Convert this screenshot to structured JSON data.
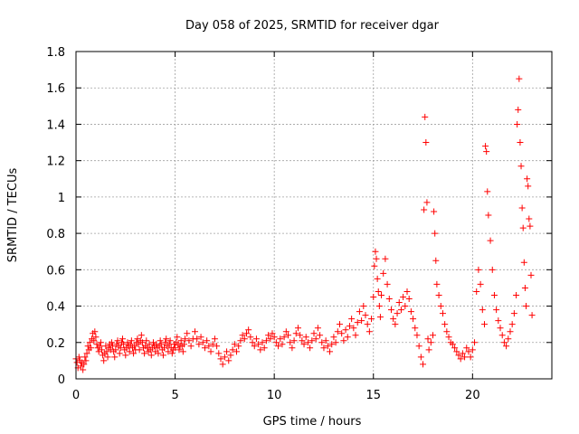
{
  "chart_data": {
    "type": "scatter",
    "title": "Day 058 of 2025, SRMTID for receiver dgar",
    "xlabel": "GPS time / hours",
    "ylabel": "SRMTID / TECUs",
    "xlim": [
      0,
      24
    ],
    "ylim": [
      0,
      1.8
    ],
    "xticks": [
      0,
      5,
      10,
      15,
      20
    ],
    "xtick_labels": [
      "0",
      "5",
      "10",
      "15",
      "20"
    ],
    "yticks": [
      0,
      0.2,
      0.4,
      0.6,
      0.8,
      1,
      1.2,
      1.4,
      1.6,
      1.8
    ],
    "ytick_labels": [
      "0",
      "0.2",
      "0.4",
      "0.6",
      "0.8",
      "1",
      "1.2",
      "1.4",
      "1.6",
      "1.8"
    ],
    "grid": true,
    "marker": "+",
    "marker_color": "#ff0000",
    "series": [
      {
        "name": "SRMTID",
        "points": [
          [
            0.0,
            0.11
          ],
          [
            0.05,
            0.09
          ],
          [
            0.1,
            0.06
          ],
          [
            0.15,
            0.12
          ],
          [
            0.2,
            0.1
          ],
          [
            0.25,
            0.07
          ],
          [
            0.3,
            0.09
          ],
          [
            0.35,
            0.05
          ],
          [
            0.4,
            0.08
          ],
          [
            0.45,
            0.12
          ],
          [
            0.5,
            0.1
          ],
          [
            0.55,
            0.14
          ],
          [
            0.6,
            0.18
          ],
          [
            0.65,
            0.16
          ],
          [
            0.7,
            0.2
          ],
          [
            0.75,
            0.17
          ],
          [
            0.8,
            0.22
          ],
          [
            0.85,
            0.25
          ],
          [
            0.9,
            0.21
          ],
          [
            0.95,
            0.26
          ],
          [
            1.0,
            0.23
          ],
          [
            1.05,
            0.19
          ],
          [
            1.1,
            0.17
          ],
          [
            1.15,
            0.15
          ],
          [
            1.2,
            0.18
          ],
          [
            1.25,
            0.2
          ],
          [
            1.3,
            0.16
          ],
          [
            1.35,
            0.13
          ],
          [
            1.4,
            0.1
          ],
          [
            1.45,
            0.14
          ],
          [
            1.5,
            0.18
          ],
          [
            1.55,
            0.15
          ],
          [
            1.6,
            0.12
          ],
          [
            1.65,
            0.17
          ],
          [
            1.7,
            0.19
          ],
          [
            1.75,
            0.16
          ],
          [
            1.8,
            0.2
          ],
          [
            1.85,
            0.18
          ],
          [
            1.9,
            0.15
          ],
          [
            1.95,
            0.12
          ],
          [
            2.0,
            0.16
          ],
          [
            2.05,
            0.19
          ],
          [
            2.1,
            0.21
          ],
          [
            2.15,
            0.18
          ],
          [
            2.2,
            0.14
          ],
          [
            2.25,
            0.17
          ],
          [
            2.3,
            0.2
          ],
          [
            2.35,
            0.22
          ],
          [
            2.4,
            0.19
          ],
          [
            2.45,
            0.16
          ],
          [
            2.5,
            0.13
          ],
          [
            2.55,
            0.17
          ],
          [
            2.6,
            0.2
          ],
          [
            2.65,
            0.18
          ],
          [
            2.7,
            0.15
          ],
          [
            2.75,
            0.19
          ],
          [
            2.8,
            0.21
          ],
          [
            2.85,
            0.17
          ],
          [
            2.9,
            0.14
          ],
          [
            2.95,
            0.18
          ],
          [
            3.0,
            0.16
          ],
          [
            3.05,
            0.2
          ],
          [
            3.1,
            0.22
          ],
          [
            3.15,
            0.19
          ],
          [
            3.2,
            0.16
          ],
          [
            3.25,
            0.21
          ],
          [
            3.3,
            0.24
          ],
          [
            3.35,
            0.2
          ],
          [
            3.4,
            0.17
          ],
          [
            3.45,
            0.14
          ],
          [
            3.5,
            0.18
          ],
          [
            3.55,
            0.21
          ],
          [
            3.6,
            0.17
          ],
          [
            3.65,
            0.15
          ],
          [
            3.7,
            0.19
          ],
          [
            3.75,
            0.16
          ],
          [
            3.8,
            0.13
          ],
          [
            3.85,
            0.17
          ],
          [
            3.9,
            0.2
          ],
          [
            3.95,
            0.18
          ],
          [
            4.0,
            0.15
          ],
          [
            4.05,
            0.19
          ],
          [
            4.1,
            0.17
          ],
          [
            4.15,
            0.14
          ],
          [
            4.2,
            0.18
          ],
          [
            4.25,
            0.21
          ],
          [
            4.3,
            0.19
          ],
          [
            4.35,
            0.16
          ],
          [
            4.4,
            0.13
          ],
          [
            4.45,
            0.17
          ],
          [
            4.5,
            0.2
          ],
          [
            4.55,
            0.22
          ],
          [
            4.6,
            0.18
          ],
          [
            4.65,
            0.15
          ],
          [
            4.7,
            0.19
          ],
          [
            4.75,
            0.21
          ],
          [
            4.8,
            0.17
          ],
          [
            4.85,
            0.14
          ],
          [
            4.9,
            0.16
          ],
          [
            4.95,
            0.19
          ],
          [
            5.0,
            0.17
          ],
          [
            5.05,
            0.2
          ],
          [
            5.1,
            0.23
          ],
          [
            5.15,
            0.19
          ],
          [
            5.2,
            0.16
          ],
          [
            5.25,
            0.18
          ],
          [
            5.3,
            0.21
          ],
          [
            5.35,
            0.18
          ],
          [
            5.4,
            0.15
          ],
          [
            5.45,
            0.19
          ],
          [
            5.5,
            0.22
          ],
          [
            5.6,
            0.25
          ],
          [
            5.7,
            0.21
          ],
          [
            5.8,
            0.18
          ],
          [
            5.9,
            0.22
          ],
          [
            6.0,
            0.26
          ],
          [
            6.1,
            0.22
          ],
          [
            6.2,
            0.19
          ],
          [
            6.3,
            0.23
          ],
          [
            6.4,
            0.2
          ],
          [
            6.5,
            0.17
          ],
          [
            6.6,
            0.21
          ],
          [
            6.7,
            0.18
          ],
          [
            6.8,
            0.15
          ],
          [
            6.9,
            0.19
          ],
          [
            7.0,
            0.22
          ],
          [
            7.1,
            0.18
          ],
          [
            7.2,
            0.14
          ],
          [
            7.3,
            0.11
          ],
          [
            7.4,
            0.08
          ],
          [
            7.5,
            0.12
          ],
          [
            7.6,
            0.15
          ],
          [
            7.7,
            0.1
          ],
          [
            7.8,
            0.13
          ],
          [
            7.9,
            0.16
          ],
          [
            8.0,
            0.19
          ],
          [
            8.1,
            0.15
          ],
          [
            8.2,
            0.18
          ],
          [
            8.3,
            0.21
          ],
          [
            8.4,
            0.24
          ],
          [
            8.5,
            0.22
          ],
          [
            8.6,
            0.25
          ],
          [
            8.7,
            0.27
          ],
          [
            8.8,
            0.23
          ],
          [
            8.9,
            0.2
          ],
          [
            9.0,
            0.18
          ],
          [
            9.1,
            0.22
          ],
          [
            9.2,
            0.19
          ],
          [
            9.3,
            0.16
          ],
          [
            9.4,
            0.2
          ],
          [
            9.5,
            0.17
          ],
          [
            9.6,
            0.21
          ],
          [
            9.7,
            0.24
          ],
          [
            9.8,
            0.22
          ],
          [
            9.9,
            0.25
          ],
          [
            10.0,
            0.23
          ],
          [
            10.1,
            0.2
          ],
          [
            10.2,
            0.18
          ],
          [
            10.3,
            0.22
          ],
          [
            10.4,
            0.19
          ],
          [
            10.5,
            0.23
          ],
          [
            10.6,
            0.26
          ],
          [
            10.7,
            0.24
          ],
          [
            10.8,
            0.2
          ],
          [
            10.9,
            0.17
          ],
          [
            11.0,
            0.21
          ],
          [
            11.1,
            0.25
          ],
          [
            11.2,
            0.28
          ],
          [
            11.3,
            0.24
          ],
          [
            11.4,
            0.21
          ],
          [
            11.5,
            0.19
          ],
          [
            11.6,
            0.23
          ],
          [
            11.7,
            0.2
          ],
          [
            11.8,
            0.17
          ],
          [
            11.9,
            0.21
          ],
          [
            12.0,
            0.25
          ],
          [
            12.1,
            0.22
          ],
          [
            12.2,
            0.28
          ],
          [
            12.3,
            0.24
          ],
          [
            12.4,
            0.2
          ],
          [
            12.5,
            0.17
          ],
          [
            12.6,
            0.21
          ],
          [
            12.7,
            0.18
          ],
          [
            12.8,
            0.15
          ],
          [
            12.9,
            0.19
          ],
          [
            13.0,
            0.23
          ],
          [
            13.1,
            0.2
          ],
          [
            13.2,
            0.26
          ],
          [
            13.3,
            0.3
          ],
          [
            13.4,
            0.25
          ],
          [
            13.5,
            0.21
          ],
          [
            13.6,
            0.27
          ],
          [
            13.7,
            0.23
          ],
          [
            13.8,
            0.29
          ],
          [
            13.9,
            0.33
          ],
          [
            14.0,
            0.28
          ],
          [
            14.1,
            0.24
          ],
          [
            14.2,
            0.31
          ],
          [
            14.3,
            0.37
          ],
          [
            14.4,
            0.32
          ],
          [
            14.5,
            0.4
          ],
          [
            14.6,
            0.35
          ],
          [
            14.7,
            0.3
          ],
          [
            14.8,
            0.26
          ],
          [
            14.9,
            0.33
          ],
          [
            15.0,
            0.45
          ],
          [
            15.05,
            0.62
          ],
          [
            15.1,
            0.7
          ],
          [
            15.15,
            0.66
          ],
          [
            15.2,
            0.55
          ],
          [
            15.25,
            0.48
          ],
          [
            15.3,
            0.4
          ],
          [
            15.35,
            0.34
          ],
          [
            15.4,
            0.46
          ],
          [
            15.5,
            0.58
          ],
          [
            15.6,
            0.66
          ],
          [
            15.7,
            0.52
          ],
          [
            15.8,
            0.44
          ],
          [
            15.9,
            0.38
          ],
          [
            16.0,
            0.33
          ],
          [
            16.1,
            0.3
          ],
          [
            16.2,
            0.36
          ],
          [
            16.3,
            0.42
          ],
          [
            16.4,
            0.38
          ],
          [
            16.5,
            0.45
          ],
          [
            16.6,
            0.4
          ],
          [
            16.7,
            0.48
          ],
          [
            16.8,
            0.44
          ],
          [
            16.9,
            0.37
          ],
          [
            17.0,
            0.33
          ],
          [
            17.1,
            0.28
          ],
          [
            17.2,
            0.24
          ],
          [
            17.3,
            0.18
          ],
          [
            17.4,
            0.12
          ],
          [
            17.5,
            0.08
          ],
          [
            17.55,
            0.93
          ],
          [
            17.6,
            1.44
          ],
          [
            17.65,
            1.3
          ],
          [
            17.7,
            0.97
          ],
          [
            17.75,
            0.22
          ],
          [
            17.8,
            0.16
          ],
          [
            17.9,
            0.2
          ],
          [
            18.0,
            0.24
          ],
          [
            18.05,
            0.92
          ],
          [
            18.1,
            0.8
          ],
          [
            18.15,
            0.65
          ],
          [
            18.2,
            0.52
          ],
          [
            18.3,
            0.46
          ],
          [
            18.4,
            0.4
          ],
          [
            18.5,
            0.36
          ],
          [
            18.6,
            0.3
          ],
          [
            18.7,
            0.26
          ],
          [
            18.8,
            0.23
          ],
          [
            18.9,
            0.2
          ],
          [
            19.0,
            0.19
          ],
          [
            19.1,
            0.17
          ],
          [
            19.2,
            0.15
          ],
          [
            19.3,
            0.13
          ],
          [
            19.4,
            0.11
          ],
          [
            19.5,
            0.14
          ],
          [
            19.6,
            0.12
          ],
          [
            19.7,
            0.17
          ],
          [
            19.8,
            0.15
          ],
          [
            19.9,
            0.12
          ],
          [
            20.0,
            0.16
          ],
          [
            20.1,
            0.2
          ],
          [
            20.2,
            0.48
          ],
          [
            20.3,
            0.6
          ],
          [
            20.4,
            0.52
          ],
          [
            20.5,
            0.38
          ],
          [
            20.6,
            0.3
          ],
          [
            20.65,
            1.28
          ],
          [
            20.7,
            1.25
          ],
          [
            20.75,
            1.03
          ],
          [
            20.8,
            0.9
          ],
          [
            20.9,
            0.76
          ],
          [
            21.0,
            0.6
          ],
          [
            21.1,
            0.46
          ],
          [
            21.2,
            0.38
          ],
          [
            21.3,
            0.32
          ],
          [
            21.4,
            0.28
          ],
          [
            21.5,
            0.24
          ],
          [
            21.6,
            0.2
          ],
          [
            21.7,
            0.18
          ],
          [
            21.8,
            0.22
          ],
          [
            21.9,
            0.26
          ],
          [
            22.0,
            0.3
          ],
          [
            22.1,
            0.36
          ],
          [
            22.2,
            0.46
          ],
          [
            22.25,
            1.4
          ],
          [
            22.3,
            1.48
          ],
          [
            22.35,
            1.65
          ],
          [
            22.4,
            1.3
          ],
          [
            22.45,
            1.17
          ],
          [
            22.5,
            0.94
          ],
          [
            22.55,
            0.83
          ],
          [
            22.6,
            0.64
          ],
          [
            22.65,
            0.5
          ],
          [
            22.7,
            0.4
          ],
          [
            22.75,
            1.1
          ],
          [
            22.8,
            1.06
          ],
          [
            22.85,
            0.88
          ],
          [
            22.9,
            0.84
          ],
          [
            22.95,
            0.57
          ],
          [
            23.0,
            0.35
          ]
        ]
      }
    ]
  }
}
